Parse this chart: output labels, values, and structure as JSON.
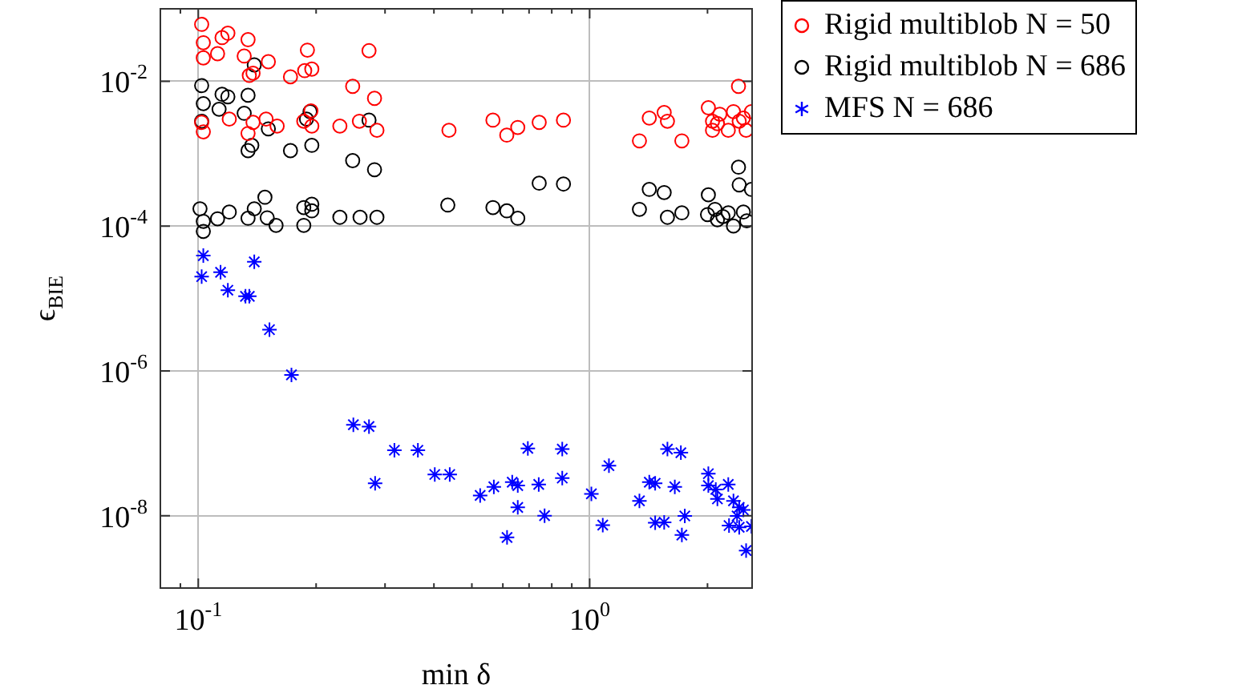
{
  "chart_data": {
    "type": "scatter",
    "xlabel": "min δ",
    "ylabel": "ϵ$_{BIE}$",
    "log": "xy",
    "grid": true,
    "legend": "top right",
    "xlim": [
      0.08,
      2.6
    ],
    "ylim": [
      1e-09,
      0.1
    ],
    "xticks": [
      {
        "value": 0.08,
        "label": null
      },
      {
        "value": 0.09,
        "label": null
      },
      {
        "value": 0.1,
        "label": "10$^{-1}$"
      },
      {
        "value": 0.2,
        "label": null
      },
      {
        "value": 0.3,
        "label": null
      },
      {
        "value": 0.4,
        "label": null
      },
      {
        "value": 0.5,
        "label": null
      },
      {
        "value": 0.6,
        "label": null
      },
      {
        "value": 0.7,
        "label": null
      },
      {
        "value": 0.8,
        "label": null
      },
      {
        "value": 0.9,
        "label": null
      },
      {
        "value": 1,
        "label": "10$^{0}$"
      },
      {
        "value": 2,
        "label": null
      }
    ],
    "yticks": [
      {
        "value": 1e-08,
        "label": "10$^{-8}$"
      },
      {
        "value": 1e-06,
        "label": "10$^{-6}$"
      },
      {
        "value": 0.0001,
        "label": "10$^{-4}$"
      },
      {
        "value": 0.01,
        "label": "10$^{-2}$"
      }
    ],
    "series": [
      {
        "name": "Rigid multiblob N = 50",
        "color": "#ff0000",
        "marker": "circle",
        "x": [
          0.102,
          0.103,
          0.103,
          0.112,
          0.115,
          0.119,
          0.134,
          0.131,
          0.151,
          0.19,
          0.135,
          0.138,
          0.172,
          0.187,
          0.195,
          0.273,
          0.248,
          0.282,
          0.102,
          0.103,
          0.12,
          0.138,
          0.134,
          0.149,
          0.159,
          0.186,
          0.195,
          0.194,
          0.23,
          0.258,
          0.286,
          0.437,
          0.566,
          0.614,
          0.655,
          0.743,
          0.857,
          1.42,
          1.55,
          1.58,
          1.34,
          1.72,
          2.4,
          2.01,
          2.06,
          2.15,
          2.33,
          2.59,
          2.06,
          2.26,
          2.41,
          2.51,
          2.12,
          2.47
        ],
        "values": [
          0.061,
          0.034,
          0.021,
          0.024,
          0.04,
          0.046,
          0.0375,
          0.0223,
          0.0186,
          0.0269,
          0.012,
          0.0129,
          0.0115,
          0.014,
          0.0147,
          0.0264,
          0.0085,
          0.0058,
          0.0027,
          0.002,
          0.003,
          0.0027,
          0.0019,
          0.003,
          0.0024,
          0.0028,
          0.0024,
          0.0039,
          0.0024,
          0.0028,
          0.0021,
          0.0021,
          0.0029,
          0.0018,
          0.0023,
          0.0027,
          0.0029,
          0.0031,
          0.0037,
          0.0028,
          0.0015,
          0.0015,
          0.0085,
          0.0043,
          0.0028,
          0.0035,
          0.0038,
          0.0038,
          0.0021,
          0.0021,
          0.0028,
          0.0021,
          0.0026,
          0.0031
        ]
      },
      {
        "name": "Rigid multiblob N = 686",
        "color": "#000000",
        "marker": "circle",
        "x": [
          0.102,
          0.103,
          0.115,
          0.119,
          0.113,
          0.134,
          0.131,
          0.139,
          0.137,
          0.134,
          0.102,
          0.151,
          0.189,
          0.193,
          0.172,
          0.195,
          0.248,
          0.282,
          0.273,
          0.101,
          0.103,
          0.103,
          0.112,
          0.12,
          0.134,
          0.139,
          0.148,
          0.15,
          0.158,
          0.186,
          0.186,
          0.195,
          0.195,
          0.23,
          0.259,
          0.286,
          0.434,
          0.566,
          0.614,
          0.655,
          0.743,
          0.857,
          1.42,
          1.55,
          1.34,
          1.58,
          1.72,
          2.4,
          2.41,
          2.59,
          2.01,
          2.0,
          2.09,
          2.12,
          2.26,
          2.33,
          2.47,
          2.52,
          2.19
        ],
        "values": [
          0.0087,
          0.0049,
          0.0066,
          0.0061,
          0.0041,
          0.0064,
          0.0036,
          0.0168,
          0.0013,
          0.0011,
          0.0028,
          0.0022,
          0.003,
          0.0038,
          0.0011,
          0.0013,
          0.0008,
          0.0006,
          0.0029,
          0.000173,
          0.000116,
          8.43e-05,
          0.000126,
          0.000156,
          0.000128,
          0.000173,
          0.00025,
          0.00013,
          0.000102,
          0.000102,
          0.00018,
          0.0002,
          0.000162,
          0.000132,
          0.000132,
          0.000132,
          0.000195,
          0.00018,
          0.000162,
          0.000128,
          0.00039,
          0.00038,
          0.00032,
          0.00029,
          0.00017,
          0.000132,
          0.000152,
          0.00065,
          0.00037,
          0.00032,
          0.00027,
          0.000144,
          0.00017,
          0.000122,
          0.000152,
          0.0001,
          0.000156,
          0.000118,
          0.000135
        ]
      },
      {
        "name": "MFS N = 686",
        "color": "#0000ff",
        "marker": "cross",
        "x": [
          0.103,
          0.102,
          0.114,
          0.139,
          0.119,
          0.132,
          0.135,
          0.152,
          0.173,
          0.249,
          0.273,
          0.317,
          0.364,
          0.283,
          0.402,
          0.439,
          0.525,
          0.569,
          0.634,
          0.655,
          0.655,
          0.615,
          0.695,
          0.741,
          0.767,
          0.851,
          0.851,
          1.01,
          1.12,
          1.08,
          1.34,
          1.42,
          1.47,
          1.65,
          1.58,
          1.71,
          1.47,
          1.55,
          1.75,
          1.72,
          2.01,
          2.01,
          2.1,
          2.12,
          2.26,
          2.33,
          2.41,
          2.47,
          2.38,
          2.27,
          2.41,
          2.59,
          2.51
        ],
        "values": [
          3.9e-05,
          2e-05,
          2.3e-05,
          3.2e-05,
          1.3e-05,
          1.07e-05,
          1.07e-05,
          3.7e-06,
          8.8e-07,
          1.8e-07,
          1.7e-07,
          8e-08,
          8e-08,
          2.8e-08,
          3.7e-08,
          3.7e-08,
          1.9e-08,
          2.5e-08,
          2.9e-08,
          2.6e-08,
          1.3e-08,
          5e-09,
          8.5e-08,
          2.7e-08,
          1e-08,
          8.3e-08,
          3.3e-08,
          2e-08,
          4.9e-08,
          7.4e-09,
          1.6e-08,
          2.9e-08,
          2.8e-08,
          2.5e-08,
          8.3e-08,
          7.4e-08,
          8e-09,
          8.1e-09,
          9.9e-09,
          5.4e-09,
          3.8e-08,
          2.6e-08,
          2.3e-08,
          1.7e-08,
          2.7e-08,
          1.6e-08,
          1.3e-08,
          1.2e-08,
          9.9e-09,
          7.3e-09,
          6.9e-09,
          7.1e-09,
          3.3e-09
        ]
      }
    ]
  }
}
